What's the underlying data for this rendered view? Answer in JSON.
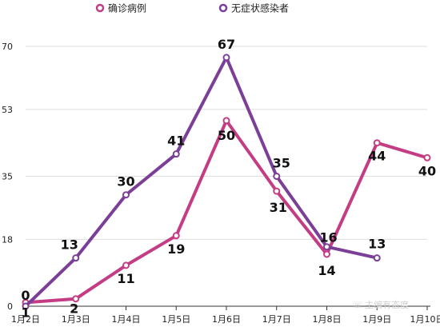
{
  "chart_data": {
    "type": "line",
    "title": "",
    "xlabel": "",
    "ylabel": "",
    "categories": [
      "1月2日",
      "1月3日",
      "1月4日",
      "1月5日",
      "1月6日",
      "1月7日",
      "1月8日",
      "1月9日",
      "1月10日"
    ],
    "yticks": [
      "0",
      "18",
      "35",
      "53",
      "70"
    ],
    "ylim": [
      0,
      70
    ],
    "grid": "horizontal",
    "legend_position": "top",
    "series": [
      {
        "name": "确诊病例",
        "color": "#c43d84",
        "values": [
          1,
          2,
          11,
          19,
          50,
          31,
          14,
          44,
          40
        ],
        "labels": [
          "1",
          "2",
          "11",
          "19",
          "50",
          "31",
          "14",
          "44",
          "40"
        ]
      },
      {
        "name": "无症状感染者",
        "color": "#7b3f97",
        "values": [
          0,
          13,
          30,
          41,
          67,
          35,
          16,
          13,
          null
        ],
        "labels": [
          "0",
          "13",
          "30",
          "41",
          "67",
          "35",
          "16",
          "13",
          ""
        ]
      }
    ]
  },
  "watermark": "主编有态度"
}
